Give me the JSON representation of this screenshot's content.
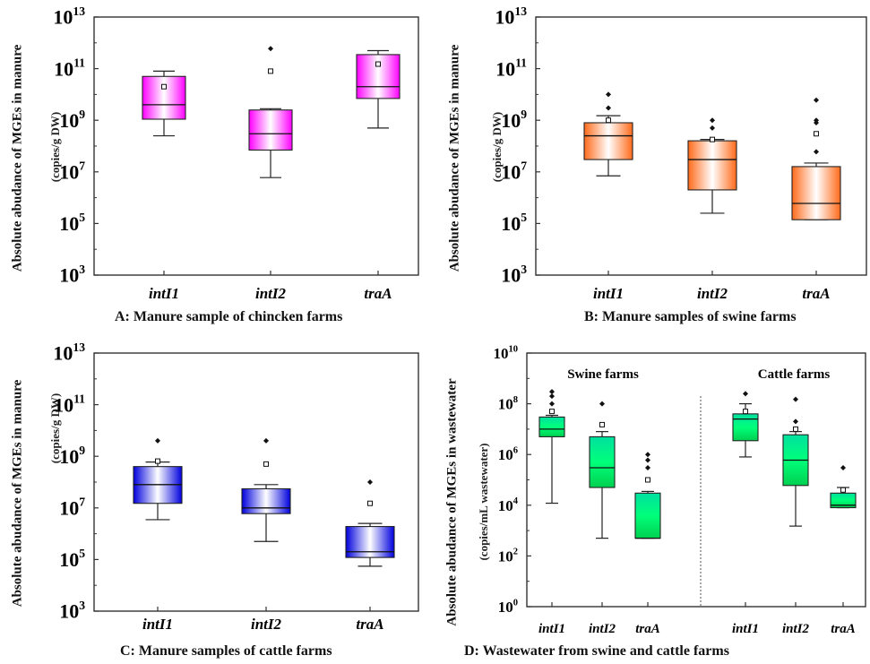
{
  "chart_data": [
    {
      "type": "box",
      "panel_id": "A",
      "caption": "A: Manure sample of chincken farms",
      "ylabel": "Absolute abudance of MGEs in manure",
      "yunit": "(copies/g DW)",
      "yscale": "log",
      "ylim": [
        1000.0,
        10000000000000.0
      ],
      "yticks": [
        {
          "value": 1000.0,
          "base": "10",
          "exp": "3"
        },
        {
          "value": 100000.0,
          "base": "10",
          "exp": "5"
        },
        {
          "value": 10000000.0,
          "base": "10",
          "exp": "7"
        },
        {
          "value": 1000000000.0,
          "base": "10",
          "exp": "9"
        },
        {
          "value": 100000000000.0,
          "base": "10",
          "exp": "11"
        },
        {
          "value": 10000000000000.0,
          "base": "10",
          "exp": "13"
        }
      ],
      "fill_color": "#ff00ff",
      "categories": [
        {
          "label": "intI1",
          "lower_whisker": 250000000.0,
          "q1": 1100000000.0,
          "median": 4000000000.0,
          "q3": 50000000000.0,
          "upper_whisker": 80000000000.0,
          "mean": 20000000000.0,
          "outliers": []
        },
        {
          "label": "intI2",
          "lower_whisker": 6000000.0,
          "q1": 70000000.0,
          "median": 300000000.0,
          "q3": 2500000000.0,
          "upper_whisker": 2800000000.0,
          "mean": 80000000000.0,
          "outliers": [
            600000000000.0
          ]
        },
        {
          "label": "traA",
          "lower_whisker": 500000000.0,
          "q1": 7000000000.0,
          "median": 20000000000.0,
          "q3": 350000000000.0,
          "upper_whisker": 500000000000.0,
          "mean": 150000000000.0,
          "outliers": []
        }
      ]
    },
    {
      "type": "box",
      "panel_id": "B",
      "caption": "B: Manure samples of swine farms",
      "ylabel": "Absolute abudance of MGEs in manure",
      "yunit": "(copies/g DW)",
      "yscale": "log",
      "ylim": [
        1000.0,
        10000000000000.0
      ],
      "yticks": [
        {
          "value": 1000.0,
          "base": "10",
          "exp": "3"
        },
        {
          "value": 100000.0,
          "base": "10",
          "exp": "5"
        },
        {
          "value": 10000000.0,
          "base": "10",
          "exp": "7"
        },
        {
          "value": 1000000000.0,
          "base": "10",
          "exp": "9"
        },
        {
          "value": 100000000000.0,
          "base": "10",
          "exp": "11"
        },
        {
          "value": 10000000000000.0,
          "base": "10",
          "exp": "13"
        }
      ],
      "fill_color": "#ff6a1a",
      "categories": [
        {
          "label": "intI1",
          "lower_whisker": 7000000.0,
          "q1": 30000000.0,
          "median": 250000000.0,
          "q3": 800000000.0,
          "upper_whisker": 1500000000.0,
          "mean": 1000000000.0,
          "outliers": [
            3000000000.0,
            10000000000.0
          ]
        },
        {
          "label": "intI2",
          "lower_whisker": 250000.0,
          "q1": 2000000.0,
          "median": 30000000.0,
          "q3": 160000000.0,
          "upper_whisker": 180000000.0,
          "mean": 180000000.0,
          "outliers": [
            500000000.0,
            1000000000.0
          ]
        },
        {
          "label": "traA",
          "lower_whisker": 140000.0,
          "q1": 140000.0,
          "median": 600000.0,
          "q3": 16000000.0,
          "upper_whisker": 22000000.0,
          "mean": 300000000.0,
          "outliers": [
            60000000.0,
            1000000000.0,
            6000000000.0,
            800000000.0
          ]
        }
      ]
    },
    {
      "type": "box",
      "panel_id": "C",
      "caption": "C: Manure samples of cattle farms",
      "ylabel": "Absolute abudance of MGEs in manure",
      "yunit": "(copies/g DW)",
      "yscale": "log",
      "ylim": [
        1000.0,
        10000000000000.0
      ],
      "yticks": [
        {
          "value": 1000.0,
          "base": "10",
          "exp": "3"
        },
        {
          "value": 100000.0,
          "base": "10",
          "exp": "5"
        },
        {
          "value": 10000000.0,
          "base": "10",
          "exp": "7"
        },
        {
          "value": 1000000000.0,
          "base": "10",
          "exp": "9"
        },
        {
          "value": 100000000000.0,
          "base": "10",
          "exp": "11"
        },
        {
          "value": 10000000000000.0,
          "base": "10",
          "exp": "13"
        }
      ],
      "fill_color": "#0000dd",
      "categories": [
        {
          "label": "intI1",
          "lower_whisker": 3500000.0,
          "q1": 15000000.0,
          "median": 80000000.0,
          "q3": 400000000.0,
          "upper_whisker": 600000000.0,
          "mean": 650000000.0,
          "outliers": [
            4000000000.0
          ]
        },
        {
          "label": "intI2",
          "lower_whisker": 500000.0,
          "q1": 6000000.0,
          "median": 10000000.0,
          "q3": 55000000.0,
          "upper_whisker": 80000000.0,
          "mean": 500000000.0,
          "outliers": [
            4000000000.0
          ]
        },
        {
          "label": "traA",
          "lower_whisker": 55000.0,
          "q1": 120000.0,
          "median": 200000.0,
          "q3": 1900000.0,
          "upper_whisker": 2500000.0,
          "mean": 15000000.0,
          "outliers": [
            100000000.0
          ]
        }
      ]
    },
    {
      "type": "box",
      "panel_id": "D",
      "caption": "D: Wastewater from swine and cattle farms",
      "ylabel": "Absolute abudance of MGEs in wastewater",
      "yunit": "(copies/mL wastewater)",
      "yscale": "log",
      "ylim": [
        1,
        10000000000.0
      ],
      "yticks": [
        {
          "value": 1,
          "base": "10",
          "exp": "0"
        },
        {
          "value": 100.0,
          "base": "10",
          "exp": "2"
        },
        {
          "value": 10000.0,
          "base": "10",
          "exp": "4"
        },
        {
          "value": 1000000.0,
          "base": "10",
          "exp": "6"
        },
        {
          "value": 100000000.0,
          "base": "10",
          "exp": "8"
        },
        {
          "value": 10000000000.0,
          "base": "10",
          "exp": "10"
        }
      ],
      "fill_color": "#00e676",
      "groups": [
        "Swine farms",
        "Cattle farms"
      ],
      "categories": [
        {
          "group": "Swine farms",
          "label": "intI1",
          "lower_whisker": 12000.0,
          "q1": 5000000.0,
          "median": 10000000.0,
          "q3": 30000000.0,
          "upper_whisker": 35000000.0,
          "mean": 50000000.0,
          "outliers": [
            100000000.0,
            200000000.0,
            300000000.0
          ]
        },
        {
          "group": "Swine farms",
          "label": "intI2",
          "lower_whisker": 500.0,
          "q1": 50000.0,
          "median": 300000.0,
          "q3": 5000000.0,
          "upper_whisker": 8000000.0,
          "mean": 15000000.0,
          "outliers": [
            100000000.0
          ]
        },
        {
          "group": "Swine farms",
          "label": "traA",
          "lower_whisker": 500.0,
          "q1": 500.0,
          "median": 500.0,
          "q3": 30000.0,
          "upper_whisker": 35000.0,
          "mean": 100000.0,
          "outliers": [
            300000.0,
            600000.0,
            1000000.0
          ]
        },
        {
          "group": "Cattle farms",
          "label": "intI1",
          "lower_whisker": 800000.0,
          "q1": 3500000.0,
          "median": 25000000.0,
          "q3": 40000000.0,
          "upper_whisker": 100000000.0,
          "mean": 50000000.0,
          "outliers": [
            250000000.0
          ]
        },
        {
          "group": "Cattle farms",
          "label": "intI2",
          "lower_whisker": 1500.0,
          "q1": 60000.0,
          "median": 600000.0,
          "q3": 6000000.0,
          "upper_whisker": 8000000.0,
          "mean": 10000000.0,
          "outliers": [
            20000000.0,
            150000000.0
          ]
        },
        {
          "group": "Cattle farms",
          "label": "traA",
          "lower_whisker": 8000.0,
          "q1": 8000.0,
          "median": 10000.0,
          "q3": 30000.0,
          "upper_whisker": 50000.0,
          "mean": 40000.0,
          "outliers": [
            300000.0
          ]
        }
      ]
    }
  ]
}
